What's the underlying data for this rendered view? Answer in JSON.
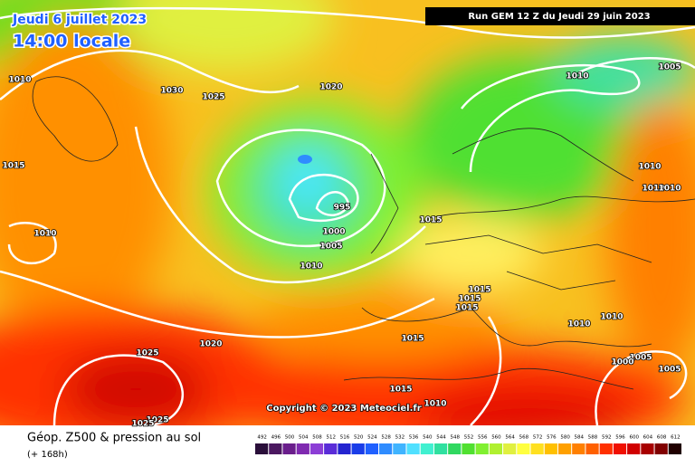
{
  "header": {
    "date": "Jeudi 6 juillet 2023",
    "time": "14:00 locale",
    "run": "Run GEM 12 Z du Jeudi 29 juin 2023"
  },
  "copyright": "Copyright © 2023 Meteociel.fr",
  "footer": {
    "title": "Géop. Z500 & pression au sol",
    "lead": "(+ 168h)"
  },
  "isobar_labels": [
    "1010",
    "1030",
    "1025",
    "1020",
    "1010",
    "1005",
    "1015",
    "1010",
    "1010",
    "1010",
    "995",
    "1000",
    "1005",
    "1015",
    "1010",
    "1010",
    "1015",
    "1015",
    "1015",
    "1010",
    "1010",
    "1015",
    "1020",
    "1025",
    "1005",
    "1000",
    "1005",
    "1015",
    "1010",
    "1025",
    "1025"
  ],
  "scale": {
    "values": [
      492,
      496,
      500,
      504,
      508,
      512,
      516,
      520,
      524,
      528,
      532,
      536,
      540,
      544,
      548,
      552,
      556,
      560,
      564,
      568,
      572,
      576,
      580,
      584,
      588,
      592,
      596,
      600,
      604,
      608,
      612
    ],
    "colors": [
      "#2a0f3a",
      "#4b1860",
      "#6a1e8c",
      "#7f2ab0",
      "#8c3ed6",
      "#5a2cd8",
      "#2424d0",
      "#1a3de8",
      "#2060ff",
      "#2f8cff",
      "#40b4ff",
      "#50e0ff",
      "#40f0d0",
      "#30e0a0",
      "#30d860",
      "#50e030",
      "#80f030",
      "#b0f030",
      "#e0f040",
      "#ffff40",
      "#ffe020",
      "#ffc000",
      "#ffa000",
      "#ff8000",
      "#ff6000",
      "#ff3000",
      "#f01000",
      "#d00000",
      "#a80000",
      "#800000",
      "#200000"
    ]
  }
}
